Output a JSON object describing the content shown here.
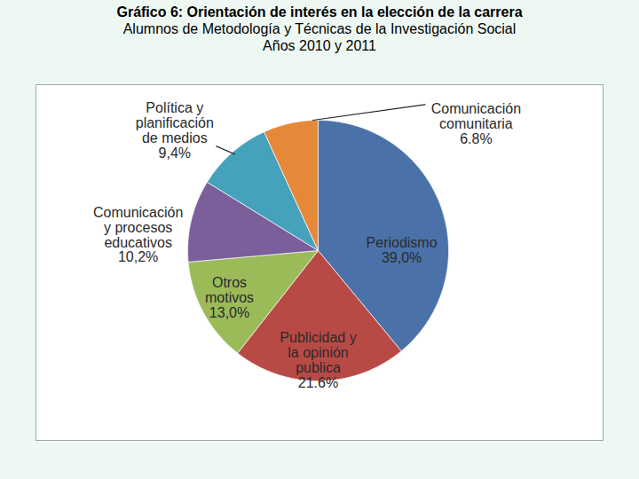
{
  "chart_data": {
    "type": "pie",
    "title": "Gráfico 6: Orientación de interés en la elección de la carrera",
    "subtitle": [
      "Alumnos de Metodología y Técnicas de la Investigación Social",
      "Años 2010 y 2011"
    ],
    "categories": [
      "Periodismo",
      "Publicidad y la opinión publica",
      "Otros motivos",
      "Comunicación y procesos educativos",
      "Política y planificación de medios",
      "Comunicación comunitaria"
    ],
    "values": [
      39.0,
      21.6,
      13.0,
      10.2,
      9.4,
      6.8
    ],
    "value_labels": [
      "39,0%",
      "21.6%",
      "13,0%",
      "10,2%",
      "9,4%",
      "6.8%"
    ],
    "colors": [
      "#4a72a9",
      "#b84a46",
      "#9bbb59",
      "#7a5f9b",
      "#46a2bb",
      "#e5883a"
    ],
    "data_labels": true,
    "tick_labels": false
  }
}
